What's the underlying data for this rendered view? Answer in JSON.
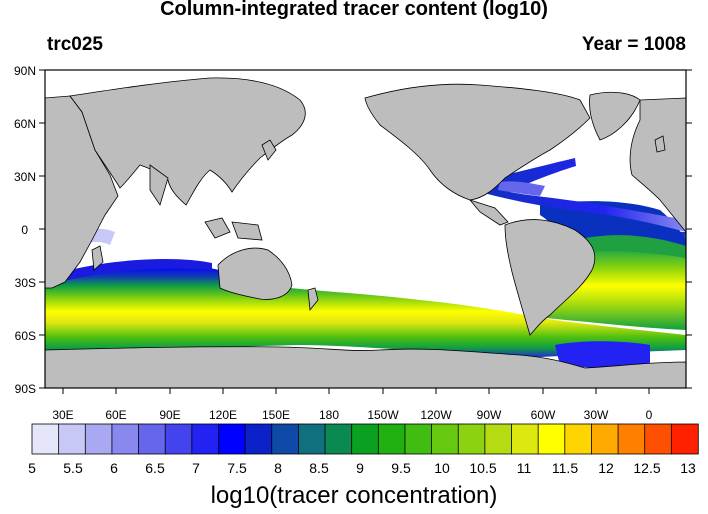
{
  "title": "Column-integrated tracer content (log10)",
  "left_label": "trc025",
  "right_label": "Year = 1008",
  "colorbar_title": "log10(tracer concentration)",
  "lat_labels": [
    "90N",
    "60N",
    "30N",
    "0",
    "30S",
    "60S",
    "90S"
  ],
  "lon_labels": [
    "30E",
    "60E",
    "90E",
    "120E",
    "150E",
    "180",
    "150W",
    "120W",
    "90W",
    "60W",
    "30W",
    "0"
  ],
  "colorbar_labels": [
    "5",
    "5.5",
    "6",
    "6.5",
    "7",
    "7.5",
    "8",
    "8.5",
    "9",
    "9.5",
    "10",
    "10.5",
    "11",
    "11.5",
    "12",
    "12.5",
    "13"
  ],
  "colors": {
    "land": "#bdbdbd",
    "ocean_no_data": "#ffffff",
    "colorbar": [
      "#e6e6fb",
      "#c8c8f7",
      "#a8a8f3",
      "#8888ef",
      "#6666ec",
      "#4444ee",
      "#2222f2",
      "#0000ff",
      "#0a22c8",
      "#104aa8",
      "#117080",
      "#0a8a50",
      "#0aa020",
      "#20b010",
      "#40bd10",
      "#66c810",
      "#8cd210",
      "#b4dc10",
      "#dce810",
      "#ffff00",
      "#ffd500",
      "#ffaa00",
      "#ff8000",
      "#ff5000",
      "#ff2000"
    ]
  },
  "chart_data": {
    "type": "heatmap",
    "projection": "cylindrical equidistant, centered at 180",
    "lon_range": [
      0,
      360
    ],
    "lat_range": [
      -90,
      90
    ],
    "colorbar_range": [
      5,
      13
    ],
    "colorbar_step": 0.33,
    "features": [
      {
        "region": "Southern Ocean band 35S-65S",
        "level_range": [
          9,
          11.5
        ]
      },
      {
        "region": "South Atlantic 20S-55S",
        "level_range": [
          9,
          11.5
        ]
      },
      {
        "region": "North Atlantic / Gulf Stream 15N-40N",
        "level_range": [
          6,
          8
        ]
      },
      {
        "region": "Tropical Atlantic 10N-10S",
        "level_range": [
          7,
          9
        ]
      },
      {
        "region": "Pacific and Indian interior",
        "level_range": null
      }
    ]
  }
}
